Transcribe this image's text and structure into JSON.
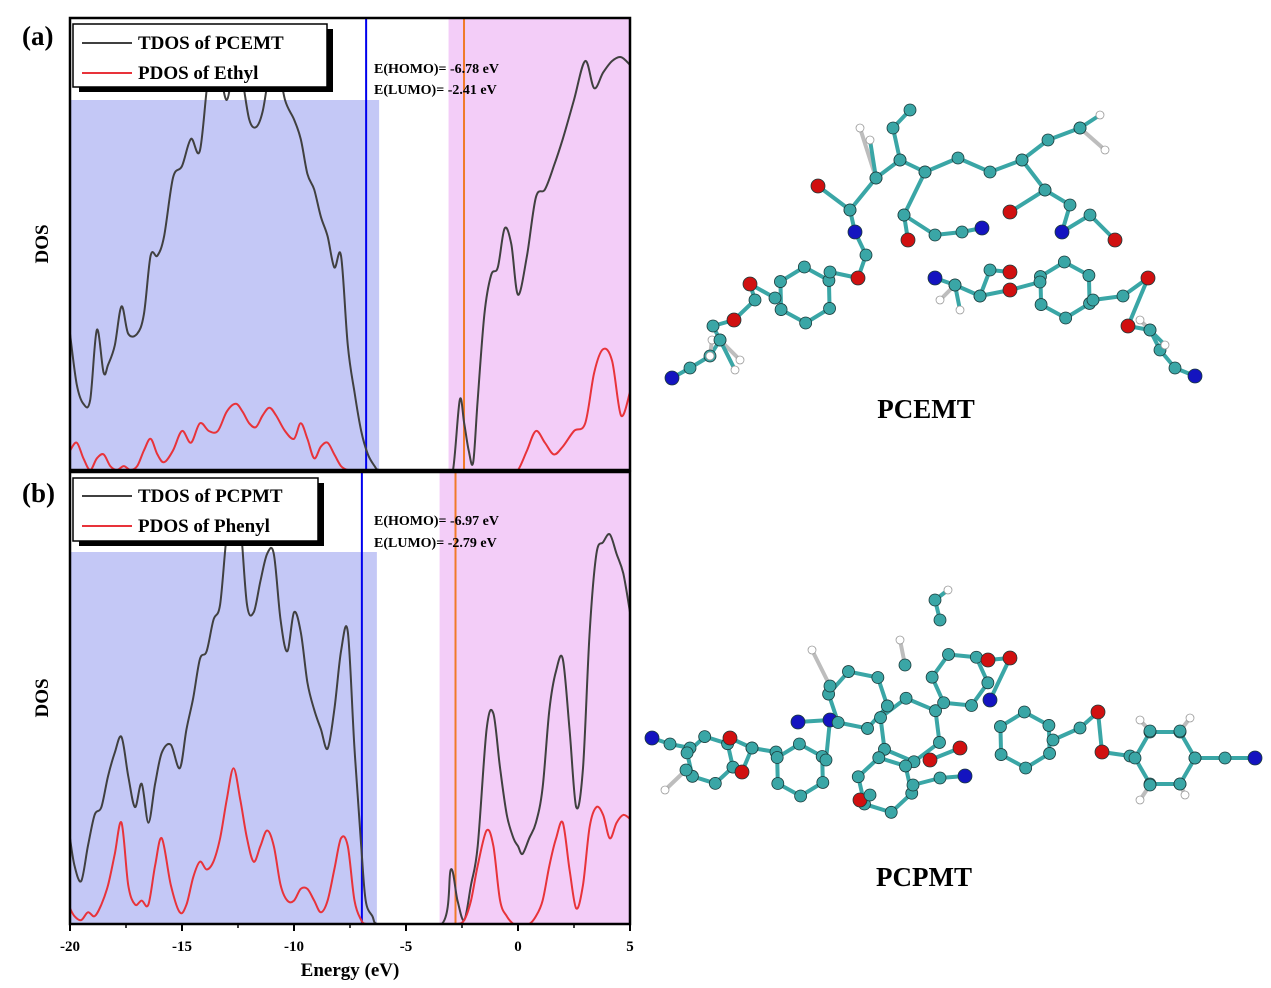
{
  "figure": {
    "xlabel": "Energy (eV)",
    "xticks": [
      "-20",
      "-15",
      "-10",
      "-5",
      "0",
      "5"
    ]
  },
  "chart_data": [
    {
      "type": "line",
      "panel_label": "(a)",
      "molecule_label": "PCEMT",
      "xlabel": "Energy (eV)",
      "ylabel": "DOS",
      "xlim": [
        -20,
        5
      ],
      "ylim": [
        0,
        1.15
      ],
      "legend_position": "top-left",
      "occupied_region": [
        -20,
        -6.2
      ],
      "unoccupied_region": [
        -3.1,
        5
      ],
      "homo": {
        "value": -6.78,
        "label": "E(HOMO)= -6.78 eV",
        "color": "#0000ee"
      },
      "lumo": {
        "value": -2.41,
        "label": "E(LUMO)= -2.41 eV",
        "color": "#f07a2a"
      },
      "region_colors": {
        "occupied": "#c4c8f6",
        "unoccupied": "#f3cdf8"
      },
      "series": [
        {
          "name": "TDOS of PCEMT",
          "color": "#404040",
          "x": [
            -20,
            -19.7,
            -19.4,
            -19.1,
            -18.8,
            -18.5,
            -18.3,
            -18.0,
            -17.7,
            -17.4,
            -17.0,
            -16.7,
            -16.4,
            -16.1,
            -15.8,
            -15.4,
            -15.0,
            -14.6,
            -14.2,
            -13.8,
            -13.4,
            -13.0,
            -12.6,
            -12.3,
            -12.0,
            -11.7,
            -11.4,
            -11.1,
            -10.8,
            -10.4,
            -10.0,
            -9.7,
            -9.4,
            -9.1,
            -8.8,
            -8.5,
            -8.2,
            -7.9,
            -7.6,
            -7.3,
            -7.0,
            -6.7,
            -6.4,
            -6.2,
            -5.5,
            -3.2,
            -2.9,
            -2.6,
            -2.4,
            -2.2,
            -2.0,
            -1.8,
            -1.5,
            -1.2,
            -0.9,
            -0.6,
            -0.3,
            0.0,
            0.4,
            0.8,
            1.2,
            1.6,
            2.0,
            2.5,
            3.0,
            3.4,
            3.8,
            4.2,
            4.6,
            5.0
          ],
          "y": [
            0.35,
            0.22,
            0.17,
            0.18,
            0.36,
            0.25,
            0.27,
            0.32,
            0.42,
            0.35,
            0.35,
            0.4,
            0.55,
            0.55,
            0.6,
            0.75,
            0.78,
            0.85,
            0.82,
            1.02,
            1.05,
            0.95,
            1.07,
            1.0,
            0.9,
            0.88,
            0.92,
            1.02,
            1.06,
            0.95,
            0.9,
            0.85,
            0.76,
            0.72,
            0.65,
            0.6,
            0.52,
            0.55,
            0.32,
            0.2,
            0.1,
            0.04,
            0.01,
            0.0,
            0.0,
            0.0,
            0.0,
            0.18,
            0.12,
            0.05,
            0.02,
            0.18,
            0.4,
            0.5,
            0.52,
            0.62,
            0.58,
            0.45,
            0.55,
            0.7,
            0.72,
            0.78,
            0.85,
            0.95,
            1.05,
            0.98,
            1.02,
            1.05,
            1.06,
            1.04
          ]
        },
        {
          "name": "PDOS of Ethyl",
          "color": "#e8333a",
          "x": [
            -20,
            -19.7,
            -19.4,
            -19.1,
            -18.8,
            -18.5,
            -18.2,
            -17.9,
            -17.6,
            -17.3,
            -17.0,
            -16.7,
            -16.4,
            -16.1,
            -15.8,
            -15.4,
            -15.0,
            -14.6,
            -14.2,
            -13.8,
            -13.4,
            -13.0,
            -12.6,
            -12.3,
            -12.0,
            -11.7,
            -11.4,
            -11.1,
            -10.8,
            -10.4,
            -10.0,
            -9.7,
            -9.4,
            -9.1,
            -8.8,
            -8.5,
            -8.2,
            -7.9,
            -7.6,
            -7.3,
            -7.0,
            -6.7,
            -6.4,
            -6.2,
            -5.5,
            -3.2,
            -2.9,
            -2.6,
            -2.4,
            -2.2,
            -2.0,
            -1.8,
            -1.5,
            -1.2,
            -0.9,
            -0.6,
            -0.3,
            0.0,
            0.4,
            0.8,
            1.2,
            1.6,
            2.0,
            2.5,
            3.0,
            3.4,
            3.8,
            4.2,
            4.6,
            5.0
          ],
          "y": [
            0.05,
            0.07,
            0.03,
            0.0,
            0.03,
            0.04,
            0.01,
            0.0,
            0.01,
            0.0,
            0.01,
            0.05,
            0.08,
            0.04,
            0.02,
            0.05,
            0.1,
            0.07,
            0.12,
            0.1,
            0.1,
            0.15,
            0.17,
            0.15,
            0.12,
            0.11,
            0.14,
            0.16,
            0.14,
            0.1,
            0.08,
            0.12,
            0.08,
            0.03,
            0.06,
            0.07,
            0.04,
            0.01,
            0.0,
            0.0,
            0.0,
            0.0,
            0.0,
            0.0,
            0.0,
            0.0,
            0.0,
            0.0,
            0.0,
            0.0,
            0.0,
            0.0,
            0.0,
            0.0,
            0.0,
            0.0,
            0.0,
            0.0,
            0.05,
            0.1,
            0.07,
            0.04,
            0.06,
            0.1,
            0.12,
            0.25,
            0.31,
            0.28,
            0.14,
            0.2
          ]
        }
      ]
    },
    {
      "type": "line",
      "panel_label": "(b)",
      "molecule_label": "PCPMT",
      "xlabel": "Energy (eV)",
      "ylabel": "DOS",
      "xlim": [
        -20,
        5
      ],
      "ylim": [
        0,
        1.15
      ],
      "legend_position": "top-left",
      "occupied_region": [
        -20,
        -6.3
      ],
      "unoccupied_region": [
        -3.5,
        5
      ],
      "homo": {
        "value": -6.97,
        "label": "E(HOMO)= -6.97 eV",
        "color": "#0000ee"
      },
      "lumo": {
        "value": -2.79,
        "label": "E(LUMO)= -2.79 eV",
        "color": "#f07a2a"
      },
      "region_colors": {
        "occupied": "#c4c8f6",
        "unoccupied": "#f3cdf8"
      },
      "series": [
        {
          "name": "TDOS of PCPMT",
          "color": "#404040",
          "x": [
            -20,
            -19.8,
            -19.5,
            -19.2,
            -18.9,
            -18.6,
            -18.3,
            -18.0,
            -17.7,
            -17.4,
            -17.1,
            -16.8,
            -16.5,
            -16.2,
            -15.9,
            -15.5,
            -15.1,
            -14.8,
            -14.5,
            -14.2,
            -13.9,
            -13.6,
            -13.3,
            -13.0,
            -12.7,
            -12.4,
            -12.1,
            -11.8,
            -11.5,
            -11.2,
            -10.9,
            -10.6,
            -10.3,
            -10.0,
            -9.7,
            -9.4,
            -9.1,
            -8.8,
            -8.5,
            -8.2,
            -7.9,
            -7.6,
            -7.3,
            -7.0,
            -6.8,
            -6.5,
            -6.3,
            -5.5,
            -3.4,
            -3.0,
            -2.7,
            -2.4,
            -2.1,
            -1.8,
            -1.4,
            -1.1,
            -0.8,
            -0.5,
            -0.2,
            0.0,
            0.2,
            0.5,
            0.8,
            1.1,
            1.4,
            1.7,
            2.0,
            2.3,
            2.6,
            2.9,
            3.2,
            3.5,
            3.8,
            4.1,
            4.4,
            4.7,
            5.0
          ],
          "y": [
            0.22,
            0.15,
            0.11,
            0.2,
            0.28,
            0.3,
            0.38,
            0.44,
            0.48,
            0.38,
            0.3,
            0.36,
            0.26,
            0.36,
            0.44,
            0.46,
            0.4,
            0.5,
            0.58,
            0.68,
            0.7,
            0.78,
            0.82,
            1.0,
            1.08,
            1.03,
            0.82,
            0.8,
            0.88,
            0.95,
            0.95,
            0.78,
            0.7,
            0.8,
            0.75,
            0.62,
            0.55,
            0.5,
            0.45,
            0.55,
            0.7,
            0.75,
            0.45,
            0.2,
            0.06,
            0.02,
            0.0,
            0.0,
            0.0,
            0.14,
            0.06,
            0.01,
            0.1,
            0.2,
            0.5,
            0.54,
            0.4,
            0.28,
            0.22,
            0.2,
            0.18,
            0.22,
            0.26,
            0.35,
            0.55,
            0.65,
            0.68,
            0.5,
            0.3,
            0.4,
            0.75,
            0.95,
            0.98,
            1.0,
            0.95,
            0.9,
            0.8
          ]
        },
        {
          "name": "PDOS of Phenyl",
          "color": "#e8333a",
          "x": [
            -20,
            -19.8,
            -19.5,
            -19.2,
            -18.9,
            -18.6,
            -18.3,
            -18.0,
            -17.7,
            -17.4,
            -17.1,
            -16.8,
            -16.5,
            -16.2,
            -15.9,
            -15.5,
            -15.1,
            -14.8,
            -14.5,
            -14.2,
            -13.9,
            -13.6,
            -13.3,
            -13.0,
            -12.7,
            -12.4,
            -12.1,
            -11.8,
            -11.5,
            -11.2,
            -10.9,
            -10.6,
            -10.3,
            -10.0,
            -9.7,
            -9.4,
            -9.1,
            -8.8,
            -8.5,
            -8.2,
            -7.9,
            -7.6,
            -7.3,
            -7.0,
            -6.8,
            -6.5,
            -6.3,
            -5.5,
            -3.4,
            -3.0,
            -2.7,
            -2.4,
            -2.1,
            -1.8,
            -1.4,
            -1.1,
            -0.8,
            -0.5,
            -0.2,
            0.0,
            0.2,
            0.5,
            0.8,
            1.1,
            1.4,
            1.7,
            2.0,
            2.3,
            2.6,
            2.9,
            3.2,
            3.5,
            3.8,
            4.1,
            4.4,
            4.7,
            5.0
          ],
          "y": [
            0.04,
            0.02,
            0.01,
            0.03,
            0.02,
            0.05,
            0.1,
            0.18,
            0.26,
            0.1,
            0.05,
            0.06,
            0.05,
            0.15,
            0.22,
            0.1,
            0.03,
            0.05,
            0.12,
            0.16,
            0.14,
            0.16,
            0.22,
            0.32,
            0.4,
            0.32,
            0.22,
            0.16,
            0.2,
            0.24,
            0.2,
            0.1,
            0.06,
            0.06,
            0.09,
            0.09,
            0.06,
            0.03,
            0.06,
            0.14,
            0.22,
            0.2,
            0.06,
            0.01,
            0.0,
            0.0,
            0.0,
            0.0,
            0.0,
            0.0,
            0.0,
            0.01,
            0.06,
            0.15,
            0.24,
            0.2,
            0.06,
            0.02,
            0.0,
            0.0,
            0.0,
            0.0,
            0.02,
            0.06,
            0.15,
            0.22,
            0.26,
            0.14,
            0.04,
            0.1,
            0.25,
            0.3,
            0.28,
            0.22,
            0.26,
            0.28,
            0.27
          ]
        }
      ]
    }
  ],
  "molecule_palette": {
    "carbon": "#3aa6a6",
    "oxygen": "#d01010",
    "nitrogen": "#1414c0",
    "hydrogen": "#ffffff"
  }
}
